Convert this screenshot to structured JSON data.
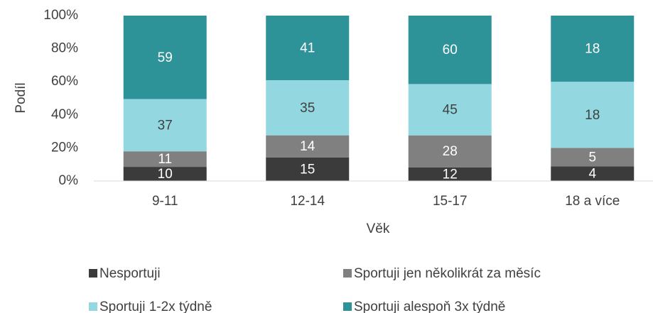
{
  "chart_data": {
    "type": "bar",
    "stacking": "percent",
    "xlabel": "Věk",
    "ylabel": "Podíl",
    "categories": [
      "9-11",
      "12-14",
      "15-17",
      "18 a více"
    ],
    "series": [
      {
        "name": "Nesportuji",
        "color": "#3b3b3b",
        "values": [
          10,
          15,
          12,
          4
        ]
      },
      {
        "name": "Sportuji jen několikrát za měsíc",
        "color": "#808080",
        "values": [
          11,
          14,
          28,
          5
        ]
      },
      {
        "name": "Sportuji 1-2x týdně",
        "color": "#93d8e0",
        "values": [
          37,
          35,
          45,
          18
        ]
      },
      {
        "name": "Sportuji alespoň 3x týdně",
        "color": "#2e9299",
        "values": [
          59,
          41,
          60,
          18
        ]
      }
    ],
    "ylim": [
      0,
      100
    ],
    "yticks": [
      {
        "value": 0,
        "label": "0%"
      },
      {
        "value": 20,
        "label": "20%"
      },
      {
        "value": 40,
        "label": "40%"
      },
      {
        "value": 60,
        "label": "60%"
      },
      {
        "value": 80,
        "label": "80%"
      },
      {
        "value": 100,
        "label": "100%"
      }
    ],
    "legend": "bottom"
  }
}
